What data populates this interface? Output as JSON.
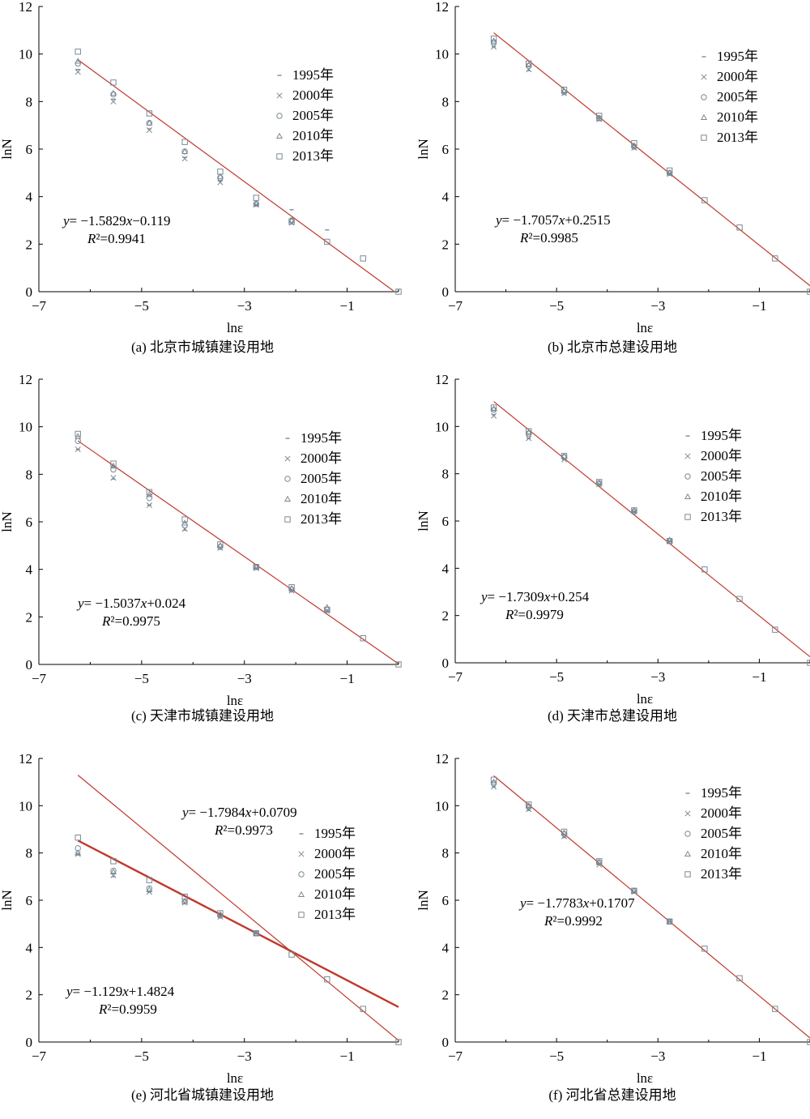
{
  "figure": {
    "background": "#ffffff",
    "line_color": "#c0392b",
    "marker_color": "#7a8a94"
  },
  "chart_data": [
    {
      "type": "scatter",
      "caption": "(a) 北京市城镇建设用地",
      "xlabel": "lnε",
      "ylabel": "lnN",
      "xlim": [
        -7,
        0
      ],
      "ylim": [
        0,
        12
      ],
      "xticks": [
        "−7",
        "−5",
        "−3",
        "−1"
      ],
      "yticks": [
        "0",
        "2",
        "4",
        "6",
        "8",
        "10",
        "12"
      ],
      "legend": [
        "1995年",
        "2000年",
        "2005年",
        "2010年",
        "2013年"
      ],
      "legend_position": "middle-right",
      "x": [
        -6.24,
        -5.55,
        -4.85,
        -4.16,
        -3.47,
        -2.77,
        -2.08,
        -1.39,
        -0.69,
        0.0
      ],
      "series": [
        {
          "name": "1995年",
          "marker": "dash",
          "y": [
            9.35,
            8.1,
            6.85,
            5.65,
            4.65,
            3.65,
            3.45,
            2.6,
            null,
            null
          ]
        },
        {
          "name": "2000年",
          "marker": "x",
          "y": [
            9.25,
            8.0,
            6.8,
            5.6,
            4.6,
            3.65,
            2.9,
            null,
            null,
            null
          ]
        },
        {
          "name": "2005年",
          "marker": "circle",
          "y": [
            9.6,
            8.3,
            7.1,
            5.9,
            4.8,
            3.7,
            3.0,
            null,
            null,
            null
          ]
        },
        {
          "name": "2010年",
          "marker": "triangle",
          "y": [
            9.7,
            8.35,
            7.1,
            5.9,
            4.85,
            3.7,
            3.0,
            null,
            null,
            null
          ]
        },
        {
          "name": "2013年",
          "marker": "square",
          "y": [
            10.1,
            8.8,
            7.5,
            6.3,
            5.05,
            3.95,
            2.95,
            2.1,
            1.4,
            0.0
          ]
        }
      ],
      "fits": [
        {
          "slope": -1.5829,
          "intercept": -0.119,
          "equation": "y= −1.5829x−0.119",
          "r2": "R²=0.9941",
          "x_range": [
            -6.24,
            -0.1
          ],
          "bold": false
        }
      ]
    },
    {
      "type": "scatter",
      "caption": "(b) 北京市总建设用地",
      "xlabel": "lnε",
      "ylabel": "lnN",
      "xlim": [
        -7,
        0
      ],
      "ylim": [
        0,
        12
      ],
      "xticks": [
        "−7",
        "−5",
        "−3",
        "−1"
      ],
      "yticks": [
        "0",
        "2",
        "4",
        "6",
        "8",
        "10",
        "12"
      ],
      "legend": [
        "1995年",
        "2000年",
        "2005年",
        "2010年",
        "2013年"
      ],
      "legend_position": "top-right",
      "x": [
        -6.24,
        -5.55,
        -4.85,
        -4.16,
        -3.47,
        -2.77,
        -2.08,
        -1.39,
        -0.69,
        0.0
      ],
      "series": [
        {
          "name": "1995年",
          "marker": "dash",
          "y": [
            10.3,
            9.3,
            8.3,
            7.2,
            6.05,
            4.95,
            null,
            null,
            null,
            null
          ]
        },
        {
          "name": "2000年",
          "marker": "x",
          "y": [
            10.3,
            9.35,
            8.35,
            7.25,
            6.05,
            4.95,
            null,
            null,
            null,
            null
          ]
        },
        {
          "name": "2005年",
          "marker": "circle",
          "y": [
            10.5,
            9.5,
            8.4,
            7.3,
            6.1,
            5.0,
            null,
            null,
            null,
            null
          ]
        },
        {
          "name": "2010年",
          "marker": "triangle",
          "y": [
            10.55,
            9.55,
            8.45,
            7.3,
            6.15,
            5.0,
            null,
            null,
            null,
            null
          ]
        },
        {
          "name": "2013年",
          "marker": "square",
          "y": [
            10.65,
            9.6,
            8.5,
            7.4,
            6.25,
            5.1,
            3.85,
            2.7,
            1.4,
            0.0
          ]
        }
      ],
      "fits": [
        {
          "slope": -1.7057,
          "intercept": 0.2515,
          "equation": "y= −1.7057x+0.2515",
          "r2": "R²=0.9985",
          "x_range": [
            -6.24,
            0.0
          ],
          "bold": false
        }
      ]
    },
    {
      "type": "scatter",
      "caption": "(c) 天津市城镇建设用地",
      "xlabel": "lnε",
      "ylabel": "lnN",
      "xlim": [
        -7,
        0
      ],
      "ylim": [
        0,
        12
      ],
      "xticks": [
        "−7",
        "−5",
        "−3",
        "−1"
      ],
      "yticks": [
        "0",
        "2",
        "4",
        "6",
        "8",
        "10",
        "12"
      ],
      "legend": [
        "1995年",
        "2000年",
        "2005年",
        "2010年",
        "2013年"
      ],
      "legend_position": "middle-right",
      "x": [
        -6.24,
        -5.55,
        -4.85,
        -4.16,
        -3.47,
        -2.77,
        -2.08,
        -1.39,
        -0.69,
        0.0
      ],
      "series": [
        {
          "name": "1995年",
          "marker": "dash",
          "y": [
            9.05,
            7.8,
            6.7,
            5.65,
            4.85,
            4.05,
            3.1,
            2.25,
            null,
            null
          ]
        },
        {
          "name": "2000年",
          "marker": "x",
          "y": [
            9.05,
            7.85,
            6.7,
            5.7,
            4.9,
            4.05,
            3.1,
            2.25,
            null,
            null
          ]
        },
        {
          "name": "2005年",
          "marker": "circle",
          "y": [
            9.4,
            8.2,
            7.0,
            5.85,
            4.95,
            4.1,
            3.15,
            2.3,
            null,
            null
          ]
        },
        {
          "name": "2010年",
          "marker": "triangle",
          "y": [
            9.6,
            8.35,
            7.15,
            5.95,
            5.0,
            4.1,
            3.2,
            2.4,
            null,
            null
          ]
        },
        {
          "name": "2013年",
          "marker": "square",
          "y": [
            9.7,
            8.45,
            7.25,
            6.1,
            5.05,
            4.1,
            3.25,
            2.3,
            1.1,
            0.0
          ]
        }
      ],
      "fits": [
        {
          "slope": -1.5037,
          "intercept": 0.024,
          "equation": "y= −1.5037x+0.024",
          "r2": "R²=0.9975",
          "x_range": [
            -6.24,
            0.0
          ],
          "bold": false
        }
      ]
    },
    {
      "type": "scatter",
      "caption": "(d) 天津市总建设用地",
      "xlabel": "lnε",
      "ylabel": "lnN",
      "xlim": [
        -7,
        0
      ],
      "ylim": [
        0,
        12
      ],
      "xticks": [
        "−7",
        "−5",
        "−3",
        "−1"
      ],
      "yticks": [
        "0",
        "2",
        "4",
        "6",
        "8",
        "10",
        "12"
      ],
      "legend": [
        "1995年",
        "2000年",
        "2005年",
        "2010年",
        "2013年"
      ],
      "legend_position": "top-right",
      "x": [
        -6.24,
        -5.55,
        -4.85,
        -4.16,
        -3.47,
        -2.77,
        -2.08,
        -1.39,
        -0.69,
        0.0
      ],
      "series": [
        {
          "name": "1995年",
          "marker": "dash",
          "y": [
            10.5,
            9.5,
            8.6,
            7.55,
            6.4,
            5.15,
            null,
            null,
            null,
            null
          ]
        },
        {
          "name": "2000年",
          "marker": "x",
          "y": [
            10.45,
            9.5,
            8.6,
            7.55,
            6.4,
            5.15,
            null,
            null,
            null,
            null
          ]
        },
        {
          "name": "2005年",
          "marker": "circle",
          "y": [
            10.7,
            9.7,
            8.7,
            7.6,
            6.4,
            5.15,
            null,
            null,
            null,
            null
          ]
        },
        {
          "name": "2010年",
          "marker": "triangle",
          "y": [
            10.75,
            9.75,
            8.75,
            7.6,
            6.45,
            5.2,
            null,
            null,
            null,
            null
          ]
        },
        {
          "name": "2013年",
          "marker": "square",
          "y": [
            10.8,
            9.8,
            8.75,
            7.65,
            6.45,
            5.15,
            3.95,
            2.7,
            1.4,
            0.0
          ]
        }
      ],
      "fits": [
        {
          "slope": -1.7309,
          "intercept": 0.254,
          "equation": "y= −1.7309x+0.254",
          "r2": "R²=0.9979",
          "x_range": [
            -6.24,
            0.0
          ],
          "bold": false
        }
      ]
    },
    {
      "type": "scatter",
      "caption": "(e) 河北省城镇建设用地",
      "xlabel": "lnε",
      "ylabel": "lnN",
      "xlim": [
        -7,
        0
      ],
      "ylim": [
        0,
        12
      ],
      "xticks": [
        "−7",
        "−5",
        "−3",
        "−1"
      ],
      "yticks": [
        "0",
        "2",
        "4",
        "6",
        "8",
        "10",
        "12"
      ],
      "legend": [
        "1995年",
        "2000年",
        "2005年",
        "2010年",
        "2013年"
      ],
      "legend_position": "middle-right",
      "x": [
        -6.24,
        -5.55,
        -4.85,
        -4.16,
        -3.47,
        -2.77,
        -2.08,
        -1.39,
        -0.69,
        0.0
      ],
      "series": [
        {
          "name": "1995年",
          "marker": "dash",
          "y": [
            7.95,
            7.0,
            6.35,
            5.85,
            5.3,
            4.6,
            null,
            null,
            null,
            null
          ]
        },
        {
          "name": "2000年",
          "marker": "x",
          "y": [
            7.95,
            7.05,
            6.35,
            5.9,
            5.3,
            4.6,
            null,
            null,
            null,
            null
          ]
        },
        {
          "name": "2005年",
          "marker": "circle",
          "y": [
            8.2,
            7.25,
            6.5,
            5.95,
            5.35,
            4.6,
            null,
            null,
            null,
            null
          ]
        },
        {
          "name": "2010年",
          "marker": "triangle",
          "y": [
            8.0,
            7.2,
            6.45,
            5.95,
            5.4,
            4.6,
            null,
            null,
            null,
            null
          ]
        },
        {
          "name": "2013年",
          "marker": "square",
          "y": [
            8.65,
            7.65,
            6.85,
            6.15,
            5.45,
            4.6,
            3.7,
            2.65,
            1.4,
            0.0
          ]
        }
      ],
      "fits": [
        {
          "slope": -1.7984,
          "intercept": 0.0709,
          "equation": "y= −1.7984x+0.0709",
          "r2": "R²=0.9973",
          "x_range": [
            -6.24,
            0.0
          ],
          "bold": false
        },
        {
          "slope": -1.129,
          "intercept": 1.4824,
          "equation": "y= −1.129x+1.4824",
          "r2": "R²=0.9959",
          "x_range": [
            -6.24,
            0.0
          ],
          "bold": true
        }
      ]
    },
    {
      "type": "scatter",
      "caption": "(f) 河北省总建设用地",
      "xlabel": "lnε",
      "ylabel": "lnN",
      "xlim": [
        -7,
        0
      ],
      "ylim": [
        0,
        12
      ],
      "xticks": [
        "−7",
        "−5",
        "−3",
        "−1"
      ],
      "yticks": [
        "0",
        "2",
        "4",
        "6",
        "8",
        "10",
        "12"
      ],
      "legend": [
        "1995年",
        "2000年",
        "2005年",
        "2010年",
        "2013年"
      ],
      "legend_position": "top-right",
      "x": [
        -6.24,
        -5.55,
        -4.85,
        -4.16,
        -3.47,
        -2.77,
        -2.08,
        -1.39,
        -0.69,
        0.0
      ],
      "series": [
        {
          "name": "1995年",
          "marker": "dash",
          "y": [
            10.8,
            9.8,
            8.65,
            7.5,
            6.35,
            5.1,
            null,
            null,
            null,
            null
          ]
        },
        {
          "name": "2000年",
          "marker": "x",
          "y": [
            10.8,
            9.85,
            8.7,
            7.5,
            6.35,
            5.1,
            null,
            null,
            null,
            null
          ]
        },
        {
          "name": "2005年",
          "marker": "circle",
          "y": [
            10.95,
            9.95,
            8.8,
            7.6,
            6.4,
            5.1,
            null,
            null,
            null,
            null
          ]
        },
        {
          "name": "2010年",
          "marker": "triangle",
          "y": [
            11.0,
            10.0,
            8.85,
            7.6,
            6.4,
            5.1,
            null,
            null,
            null,
            null
          ]
        },
        {
          "name": "2013年",
          "marker": "square",
          "y": [
            11.1,
            10.05,
            8.9,
            7.65,
            6.4,
            5.1,
            3.95,
            2.7,
            1.4,
            0.0
          ]
        }
      ],
      "fits": [
        {
          "slope": -1.7783,
          "intercept": 0.1707,
          "equation": "y= −1.7783x+0.1707",
          "r2": "R²=0.9992",
          "x_range": [
            -6.24,
            0.0
          ],
          "bold": false
        }
      ]
    }
  ]
}
